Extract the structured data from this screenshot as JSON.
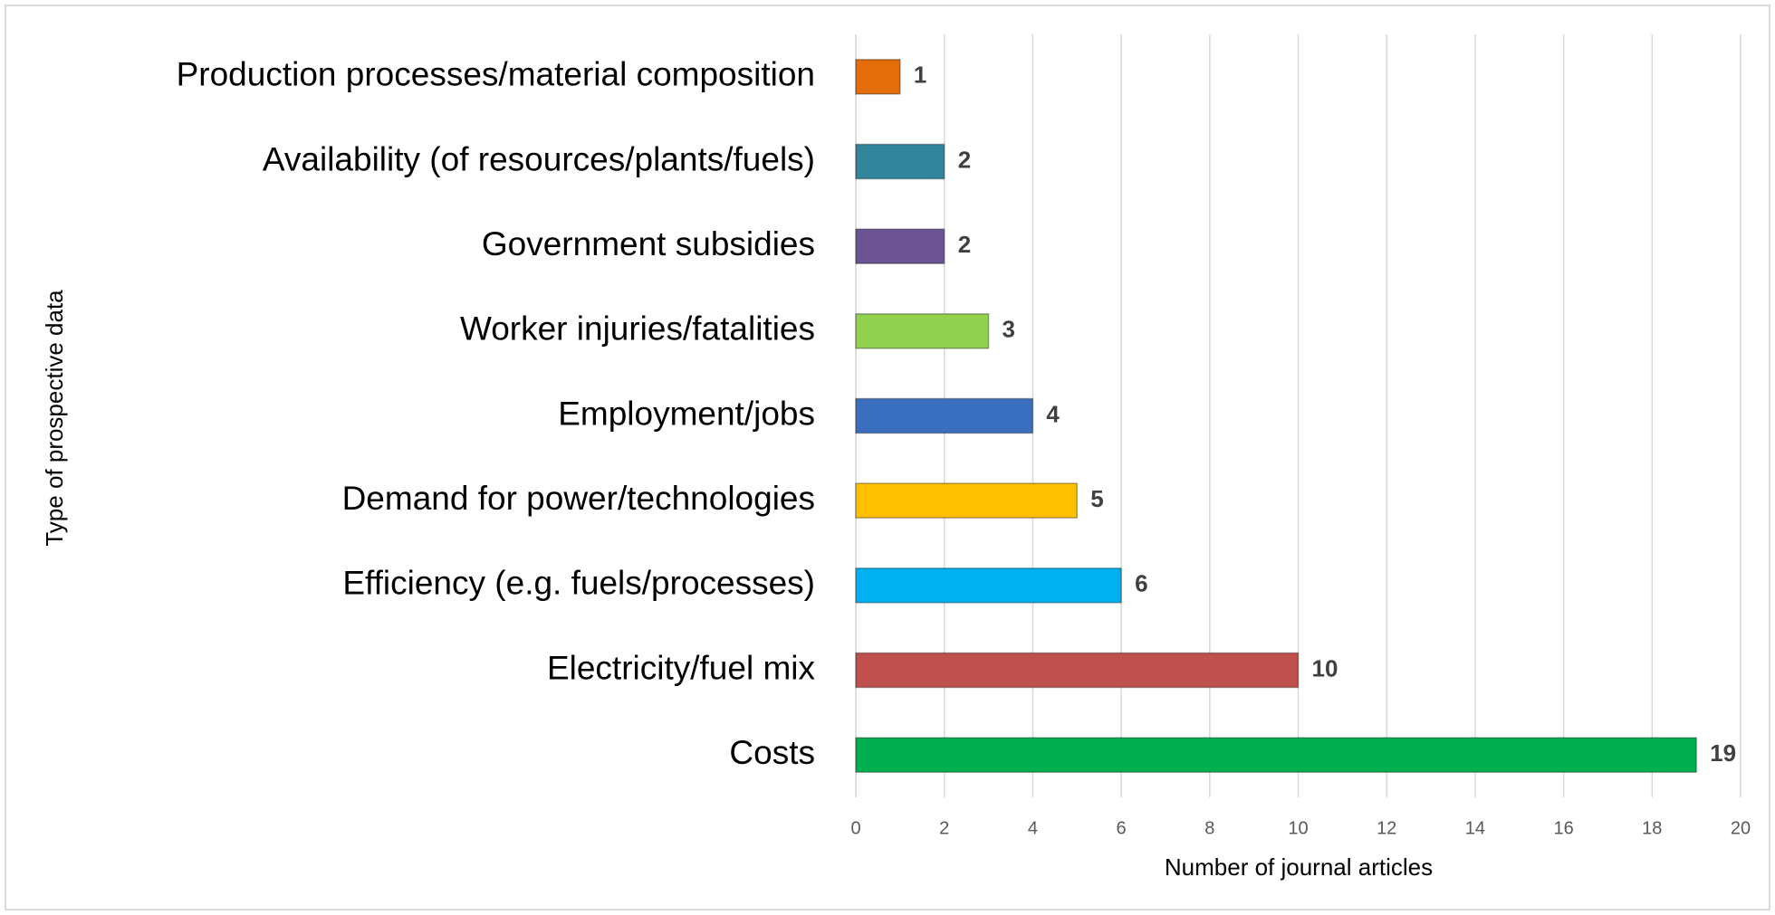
{
  "chart_data": {
    "type": "bar",
    "orientation": "horizontal",
    "xlabel": "Number of journal articles",
    "ylabel": "Type of prospective data",
    "categories": [
      "Production processes/material composition",
      "Availability (of resources/plants/fuels)",
      "Government subsidies",
      "Worker injuries/fatalities",
      "Employment/jobs",
      "Demand for power/technologies",
      "Efficiency (e.g. fuels/processes)",
      "Electricity/fuel mix",
      "Costs"
    ],
    "values": [
      1,
      2,
      2,
      3,
      4,
      5,
      6,
      10,
      19
    ],
    "colors": [
      "#e46c0a",
      "#31859c",
      "#6b5394",
      "#92d050",
      "#3a6fc0",
      "#ffc000",
      "#00b0f0",
      "#c0504d",
      "#00b050"
    ],
    "xlim": [
      0,
      20
    ],
    "xticks": [
      0,
      2,
      4,
      6,
      8,
      10,
      12,
      14,
      16,
      18,
      20
    ],
    "grid": true
  }
}
